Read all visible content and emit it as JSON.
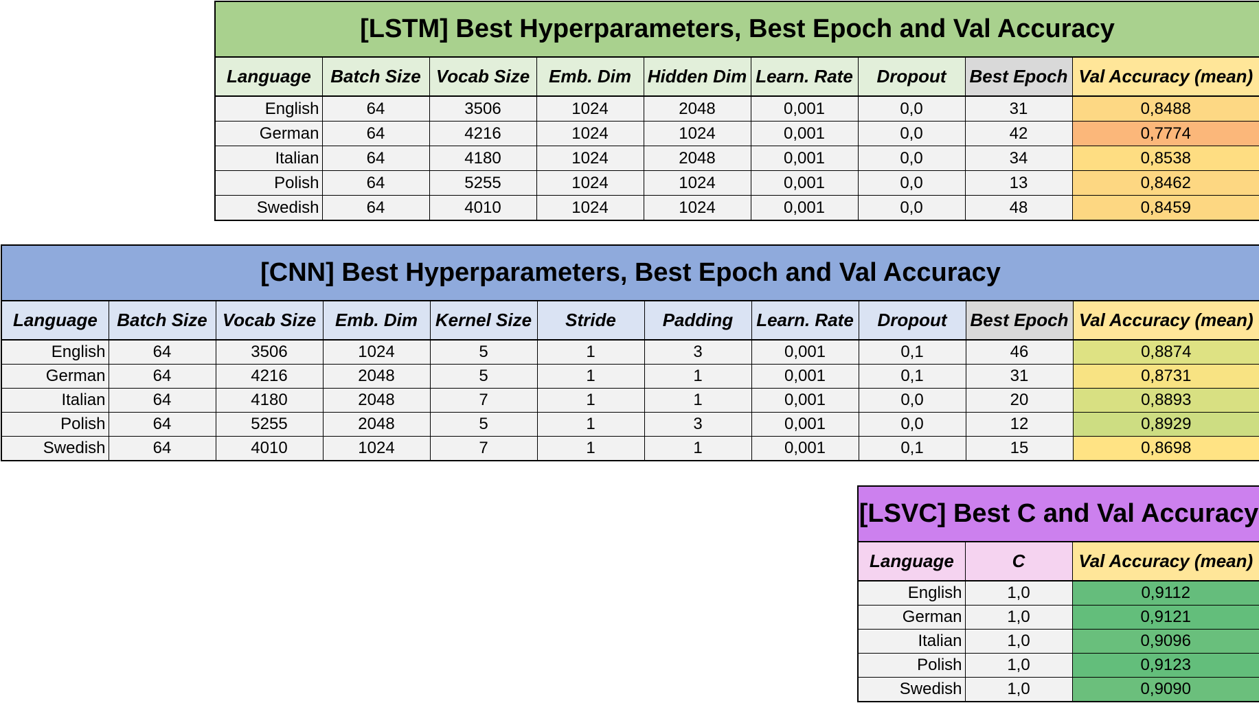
{
  "lstm": {
    "title": "[LSTM] Best Hyperparameters, Best Epoch and Val Accuracy",
    "headers": [
      "Language",
      "Batch Size",
      "Vocab Size",
      "Emb. Dim",
      "Hidden Dim",
      "Learn. Rate",
      "Dropout",
      "Best Epoch",
      "Val Accuracy (mean)"
    ],
    "rows": [
      [
        "English",
        "64",
        "3506",
        "1024",
        "2048",
        "0,001",
        "0,0",
        "31",
        "0,8488"
      ],
      [
        "German",
        "64",
        "4216",
        "1024",
        "1024",
        "0,001",
        "0,0",
        "42",
        "0,7774"
      ],
      [
        "Italian",
        "64",
        "4180",
        "1024",
        "2048",
        "0,001",
        "0,0",
        "34",
        "0,8538"
      ],
      [
        "Polish",
        "64",
        "5255",
        "1024",
        "1024",
        "0,001",
        "0,0",
        "13",
        "0,8462"
      ],
      [
        "Swedish",
        "64",
        "4010",
        "1024",
        "1024",
        "0,001",
        "0,0",
        "48",
        "0,8459"
      ]
    ],
    "accuracy_colors": [
      "#fdd884",
      "#fbb77a",
      "#fedd82",
      "#fdd782",
      "#fdd782"
    ]
  },
  "cnn": {
    "title": "[CNN] Best Hyperparameters, Best Epoch and Val Accuracy",
    "headers": [
      "Language",
      "Batch Size",
      "Vocab Size",
      "Emb. Dim",
      "Kernel Size",
      "Stride",
      "Padding",
      "Learn. Rate",
      "Dropout",
      "Best Epoch",
      "Val Accuracy (mean)"
    ],
    "rows": [
      [
        "English",
        "64",
        "3506",
        "1024",
        "5",
        "1",
        "3",
        "0,001",
        "0,1",
        "46",
        "0,8874"
      ],
      [
        "German",
        "64",
        "4216",
        "2048",
        "5",
        "1",
        "1",
        "0,001",
        "0,1",
        "31",
        "0,8731"
      ],
      [
        "Italian",
        "64",
        "4180",
        "2048",
        "7",
        "1",
        "1",
        "0,001",
        "0,0",
        "20",
        "0,8893"
      ],
      [
        "Polish",
        "64",
        "5255",
        "2048",
        "5",
        "1",
        "3",
        "0,001",
        "0,0",
        "12",
        "0,8929"
      ],
      [
        "Swedish",
        "64",
        "4010",
        "1024",
        "7",
        "1",
        "1",
        "0,001",
        "0,1",
        "15",
        "0,8698"
      ]
    ],
    "accuracy_colors": [
      "#dee283",
      "#f8e383",
      "#d8e082",
      "#cddd82",
      "#ffe384"
    ]
  },
  "lsvc": {
    "title": "[LSVC] Best C and Val Accuracy",
    "headers": [
      "Language",
      "C",
      "Val Accuracy (mean)"
    ],
    "rows": [
      [
        "English",
        "1,0",
        "0,9112"
      ],
      [
        "German",
        "1,0",
        "0,9121"
      ],
      [
        "Italian",
        "1,0",
        "0,9096"
      ],
      [
        "Polish",
        "1,0",
        "0,9123"
      ],
      [
        "Swedish",
        "1,0",
        "0,9090"
      ]
    ],
    "accuracy_colors": [
      "#65bd7c",
      "#63be7b",
      "#69bf7c",
      "#63be7b",
      "#6bbf7c"
    ]
  }
}
